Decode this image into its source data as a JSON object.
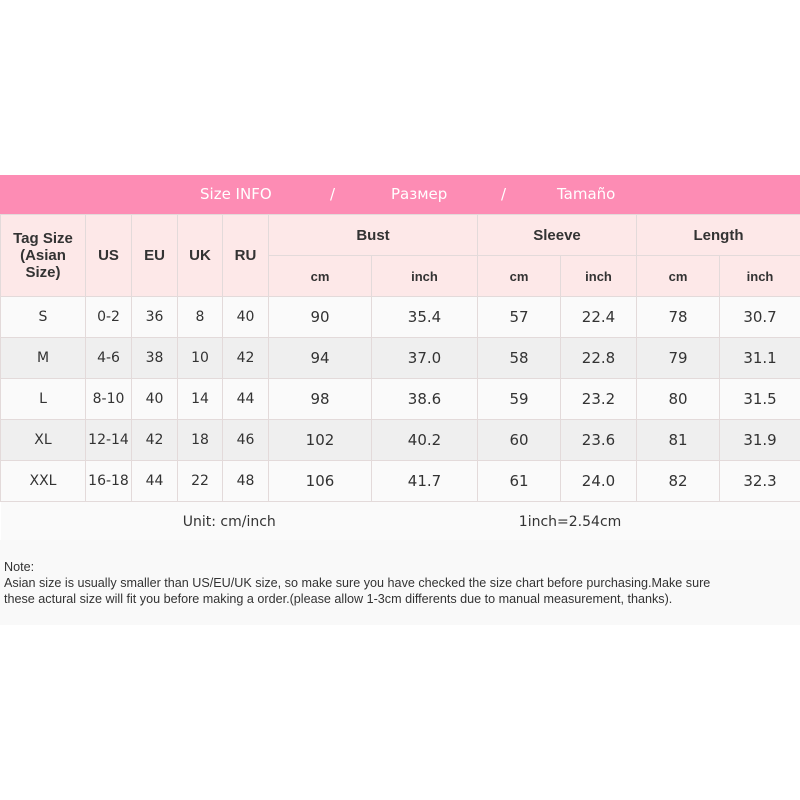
{
  "banner": {
    "title": "Size INFO",
    "sep1": "/",
    "ru": "Размер",
    "sep2": "/",
    "es": "Tamaño"
  },
  "headers": {
    "tag_size": "Tag Size",
    "tag_size_sub": "(Asian Size)",
    "us": "US",
    "eu": "EU",
    "uk": "UK",
    "ru": "RU",
    "bust": "Bust",
    "sleeve": "Sleeve",
    "length": "Length",
    "cm": "cm",
    "inch": "inch"
  },
  "rows": [
    [
      "S",
      "0-2",
      "36",
      "8",
      "40",
      "90",
      "35.4",
      "57",
      "22.4",
      "78",
      "30.7"
    ],
    [
      "M",
      "4-6",
      "38",
      "10",
      "42",
      "94",
      "37.0",
      "58",
      "22.8",
      "79",
      "31.1"
    ],
    [
      "L",
      "8-10",
      "40",
      "14",
      "44",
      "98",
      "38.6",
      "59",
      "23.2",
      "80",
      "31.5"
    ],
    [
      "XL",
      "12-14",
      "42",
      "18",
      "46",
      "102",
      "40.2",
      "60",
      "23.6",
      "81",
      "31.9"
    ],
    [
      "XXL",
      "16-18",
      "44",
      "22",
      "48",
      "106",
      "41.7",
      "61",
      "24.0",
      "82",
      "32.3"
    ]
  ],
  "unit": {
    "label": "Unit: cm/inch",
    "conversion": "1inch=2.54cm"
  },
  "note": {
    "title": "Note:",
    "line1": "Asian size is usually smaller than US/EU/UK size, so make sure you have checked the size chart before purchasing.Make sure",
    "line2": "these actural size will fit you before making a order.(please allow 1-3cm differents due to manual measurement, thanks)."
  }
}
